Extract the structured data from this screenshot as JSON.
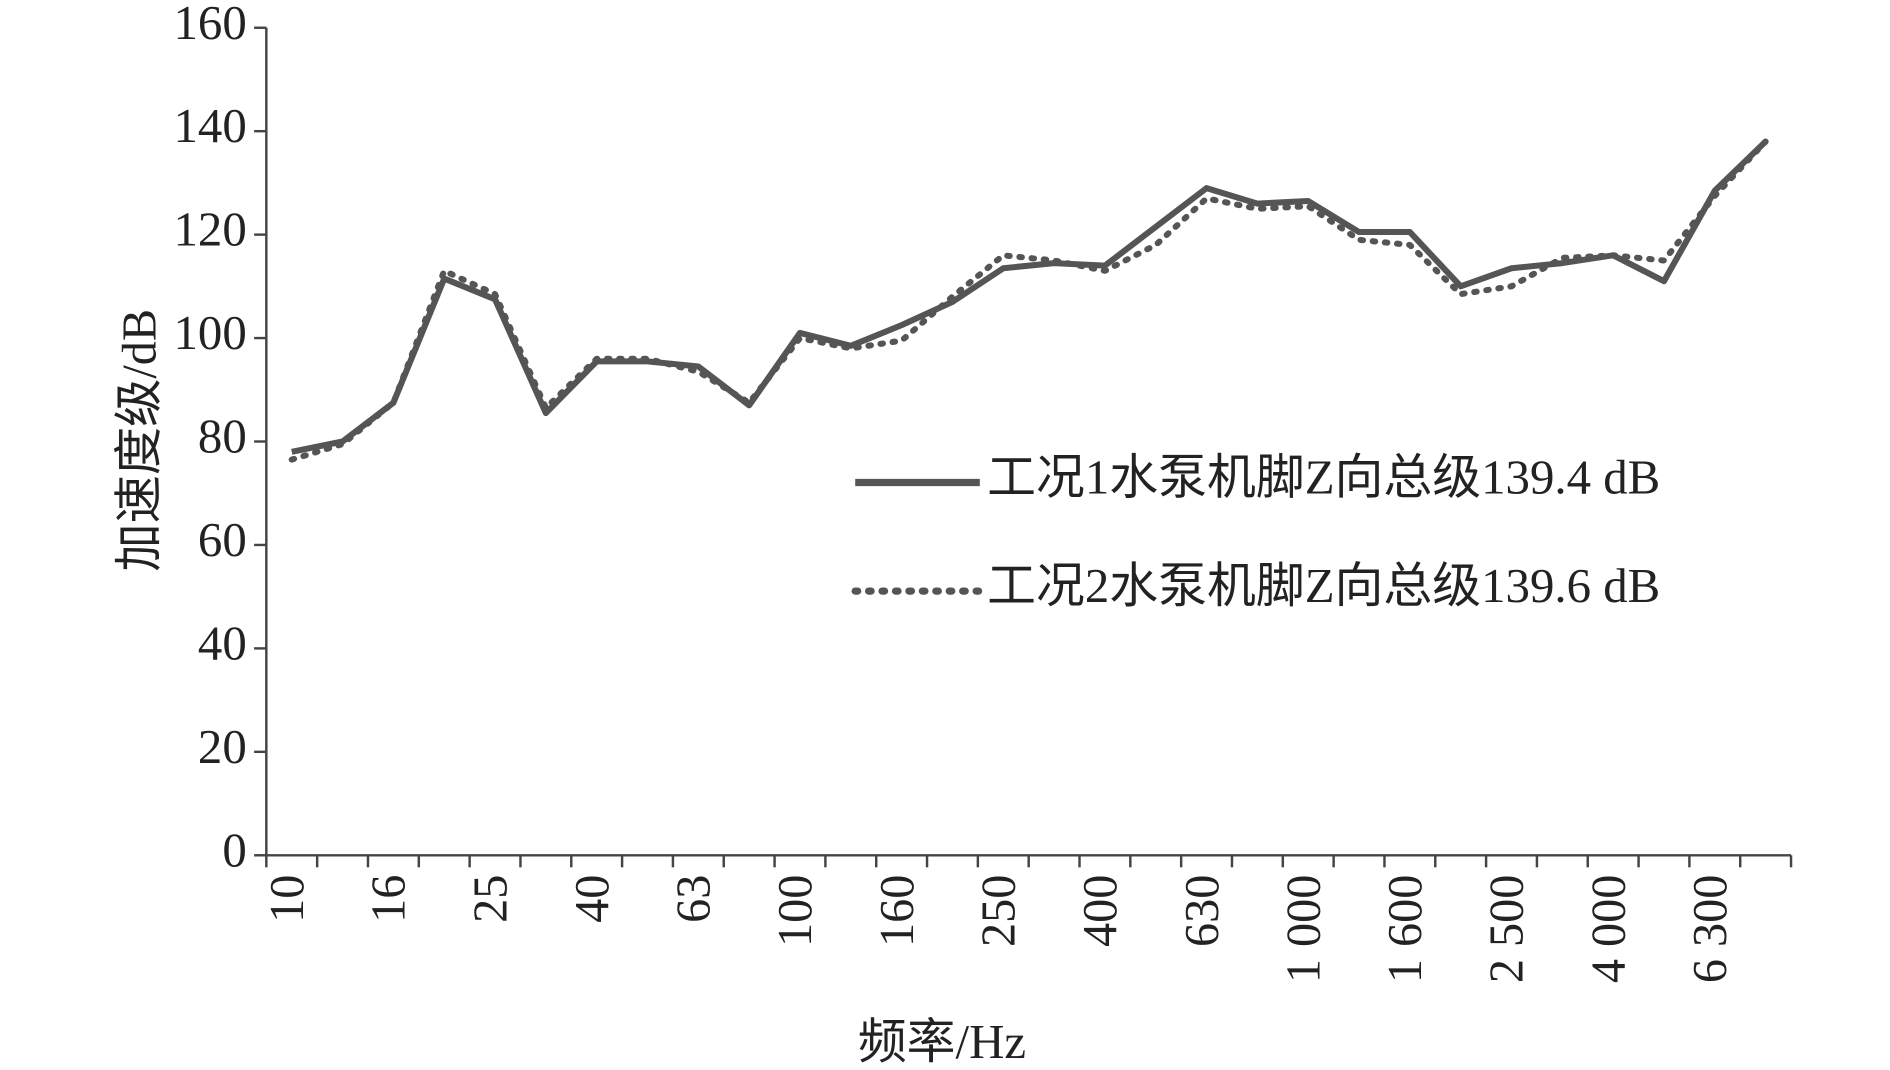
{
  "chart_data": {
    "type": "line",
    "x_label": "频率/Hz",
    "y_label": "加速度级/dB",
    "categories": [
      "10",
      null,
      "16",
      null,
      "25",
      null,
      "40",
      null,
      "63",
      null,
      "100",
      null,
      "160",
      null,
      "250",
      null,
      "400",
      null,
      "630",
      null,
      "1 000",
      null,
      "1 600",
      null,
      "2 500",
      null,
      "4 000",
      null,
      "6 300",
      null
    ],
    "series": [
      {
        "name": "工况1水泵机脚Z向总级139.4 dB",
        "color": "#555555",
        "style": "solid",
        "values": [
          78,
          80,
          87.5,
          111.5,
          107.5,
          85.5,
          95.5,
          95.5,
          94.5,
          87,
          101,
          98.5,
          102.5,
          107,
          113.5,
          114.5,
          114,
          121.5,
          129,
          126,
          126.5,
          120.5,
          120.5,
          110,
          113.5,
          114.5,
          116,
          111,
          128.5,
          138
        ]
      },
      {
        "name": "工况2水泵机脚Z向总级139.6 dB",
        "color": "#555555",
        "style": "dotted",
        "values": [
          76.5,
          79.5,
          87.5,
          113,
          108.5,
          86.5,
          96,
          96,
          93.5,
          87.5,
          100,
          98,
          99.5,
          108,
          116,
          115,
          113,
          118,
          127,
          125,
          125.5,
          119,
          118,
          108.5,
          110,
          115.5,
          116,
          115,
          127.5,
          138
        ]
      }
    ],
    "ylim": [
      0,
      160
    ],
    "yticks": [
      0,
      20,
      40,
      60,
      80,
      100,
      120,
      140,
      160
    ],
    "grid": false,
    "legend": "right"
  }
}
